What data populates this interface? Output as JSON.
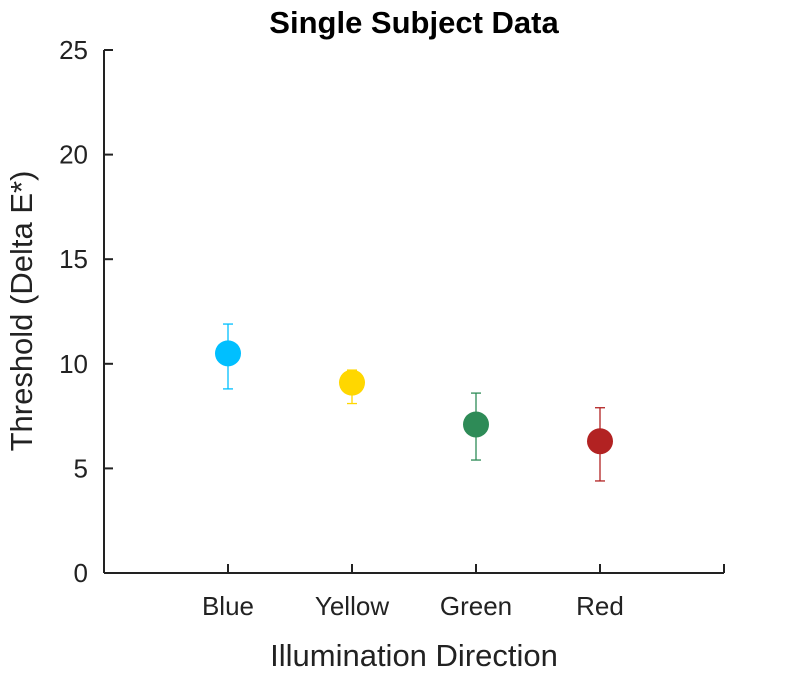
{
  "chart_data": {
    "type": "scatter",
    "title": "Single Subject Data",
    "xlabel": "Illumination Direction",
    "ylabel": "Threshold (Delta E*)",
    "ylim": [
      0,
      25
    ],
    "yticks": [
      "0",
      "5",
      "10",
      "15",
      "20",
      "25"
    ],
    "categories": [
      "Blue",
      "Yellow",
      "Green",
      "Red"
    ],
    "points": [
      {
        "category": "Blue",
        "value": 10.5,
        "err_low": 8.8,
        "err_high": 11.9,
        "color": "#00BFFF"
      },
      {
        "category": "Yellow",
        "value": 9.1,
        "err_low": 8.1,
        "err_high": 9.7,
        "color": "#FFD700"
      },
      {
        "category": "Green",
        "value": 7.1,
        "err_low": 5.4,
        "err_high": 8.6,
        "color": "#2E8B57"
      },
      {
        "category": "Red",
        "value": 6.3,
        "err_low": 4.4,
        "err_high": 7.9,
        "color": "#B22222"
      }
    ],
    "grid": false,
    "legend": "none"
  }
}
